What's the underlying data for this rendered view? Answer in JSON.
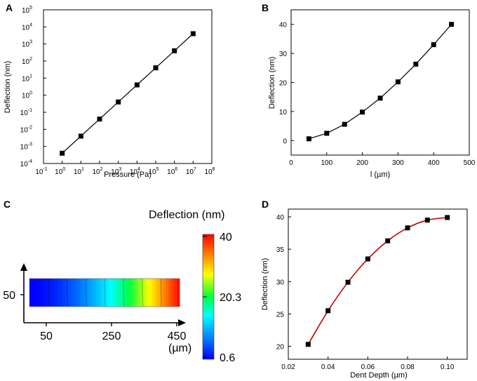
{
  "colors": {
    "line_black": "#000000",
    "line_red": "#c00000",
    "marker": "#000000",
    "background": "#ffffff"
  },
  "chart_data": [
    {
      "panel": "A",
      "type": "line",
      "xscale": "log",
      "yscale": "log",
      "xlabel": "Pressure (Pa)",
      "ylabel": "Deflection (nm)",
      "xlim": [
        0.1,
        100000000
      ],
      "ylim": [
        0.0001,
        100000
      ],
      "xticks": [
        {
          "value": 0.1,
          "base": "10",
          "exp": "-1"
        },
        {
          "value": 1,
          "base": "10",
          "exp": "0"
        },
        {
          "value": 10,
          "base": "10",
          "exp": "1"
        },
        {
          "value": 100,
          "base": "10",
          "exp": "2"
        },
        {
          "value": 1000,
          "base": "10",
          "exp": "3"
        },
        {
          "value": 10000,
          "base": "10",
          "exp": "4"
        },
        {
          "value": 100000,
          "base": "10",
          "exp": "5"
        },
        {
          "value": 1000000,
          "base": "10",
          "exp": "6"
        },
        {
          "value": 10000000,
          "base": "10",
          "exp": "7"
        },
        {
          "value": 100000000,
          "base": "10",
          "exp": "8"
        }
      ],
      "yticks": [
        {
          "value": 0.0001,
          "base": "10",
          "exp": "-4"
        },
        {
          "value": 0.001,
          "base": "10",
          "exp": "-3"
        },
        {
          "value": 0.01,
          "base": "10",
          "exp": "-2"
        },
        {
          "value": 0.1,
          "base": "10",
          "exp": "-1"
        },
        {
          "value": 1,
          "base": "10",
          "exp": "0"
        },
        {
          "value": 10,
          "base": "10",
          "exp": "1"
        },
        {
          "value": 100,
          "base": "10",
          "exp": "2"
        },
        {
          "value": 1000,
          "base": "10",
          "exp": "3"
        },
        {
          "value": 10000,
          "base": "10",
          "exp": "4"
        },
        {
          "value": 100000,
          "base": "10",
          "exp": "5"
        }
      ],
      "x": [
        1,
        10,
        100,
        1000,
        10000,
        100000,
        1000000,
        10000000
      ],
      "y": [
        0.0004,
        0.004,
        0.04,
        0.4,
        4,
        40,
        400,
        4000
      ]
    },
    {
      "panel": "B",
      "type": "line",
      "xlabel": "l (µm)",
      "ylabel": "Deflection (nm)",
      "xlim": [
        0,
        500
      ],
      "ylim": [
        -5,
        45
      ],
      "xticks": [
        0,
        100,
        200,
        300,
        400,
        500
      ],
      "yticks": [
        0,
        10,
        20,
        30,
        40
      ],
      "x": [
        50,
        100,
        150,
        200,
        250,
        300,
        350,
        400,
        450
      ],
      "y": [
        0.6,
        2.5,
        5.6,
        9.8,
        14.6,
        20.2,
        26.3,
        33.0,
        40.0
      ]
    },
    {
      "panel": "C",
      "type": "heatmap",
      "title": "Deflection (nm)",
      "colorbar_ticks": [
        "40",
        "20.3",
        "0.6"
      ],
      "colorbar_range": [
        0.6,
        40
      ],
      "x_ticks": [
        "50",
        "250",
        "450"
      ],
      "x_unit": "(µm)",
      "y_ticks": [
        "50"
      ],
      "x_range": [
        50,
        450
      ],
      "value_range": [
        0.6,
        40
      ]
    },
    {
      "panel": "D",
      "type": "line",
      "xlabel": "Dent Depth (µm)",
      "ylabel": "Deflection (nm)",
      "xlim": [
        0.02,
        0.11
      ],
      "ylim": [
        18,
        41.2
      ],
      "xticks": [
        "0.02",
        "0.04",
        "0.06",
        "0.08",
        "0.10"
      ],
      "yticks": [
        "20",
        "25",
        "30",
        "35",
        "40"
      ],
      "x": [
        0.03,
        0.04,
        0.05,
        0.06,
        0.07,
        0.08,
        0.09,
        0.1
      ],
      "y": [
        20.3,
        25.5,
        29.9,
        33.5,
        36.3,
        38.3,
        39.5,
        39.9
      ]
    }
  ]
}
